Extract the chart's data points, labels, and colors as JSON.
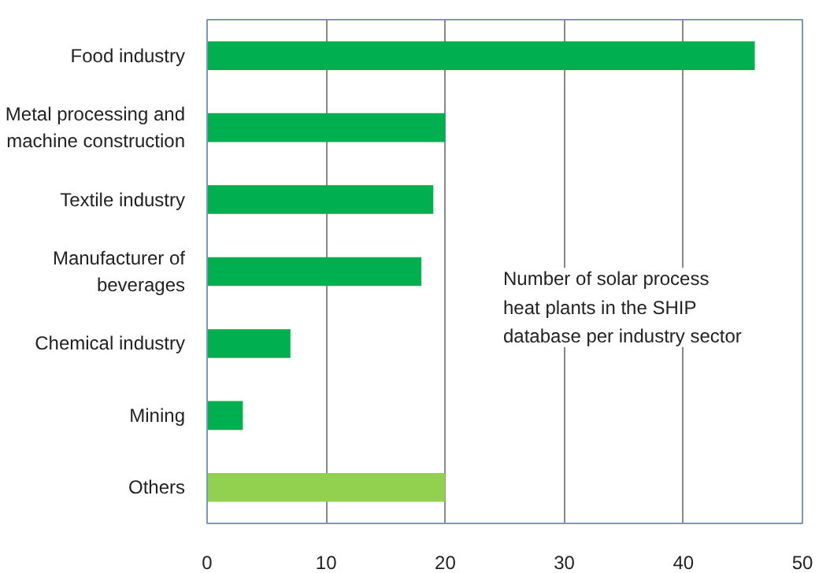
{
  "chart_data": {
    "type": "bar",
    "orientation": "horizontal",
    "categories": [
      "Food industry",
      "Metal processing and\nmachine construction",
      "Textile industry",
      "Manufacturer of\nbeverages",
      "Chemical industry",
      "Mining",
      "Others"
    ],
    "values": [
      46,
      20,
      19,
      18,
      7,
      3,
      20
    ],
    "colors": [
      "#00b050",
      "#00b050",
      "#00b050",
      "#00b050",
      "#00b050",
      "#00b050",
      "#92d050"
    ],
    "xlim": [
      0,
      50
    ],
    "xticks": [
      0,
      10,
      20,
      30,
      40,
      50
    ],
    "grid": "x",
    "annotations": [
      "Number of solar process\nheat plants in the SHIP\ndatabase per industry sector"
    ]
  }
}
